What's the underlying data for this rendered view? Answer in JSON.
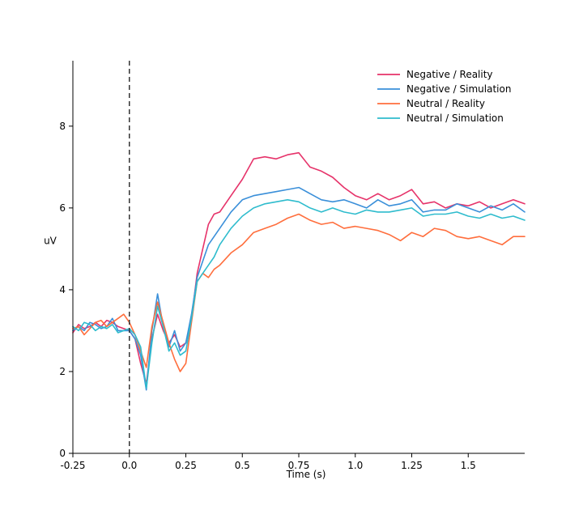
{
  "chart_data": {
    "type": "line",
    "title": "",
    "xlabel": "Time (s)",
    "ylabel": "uV",
    "xlim": [
      -0.25,
      1.75
    ],
    "ylim": [
      0,
      9.6
    ],
    "xticks": [
      -0.25,
      0.0,
      0.25,
      0.5,
      0.75,
      1.0,
      1.25,
      1.5
    ],
    "xtick_labels": [
      "-0.25",
      "0.0",
      "0.25",
      "0.5",
      "0.75",
      "1.0",
      "1.25",
      "1.5"
    ],
    "yticks": [
      0,
      2,
      4,
      6,
      8
    ],
    "ytick_labels": [
      "0",
      "2",
      "4",
      "6",
      "8"
    ],
    "grid": false,
    "legend_position": "top-right",
    "vline": {
      "x": 0.0,
      "style": "dashed"
    },
    "x": [
      -0.25,
      -0.225,
      -0.2,
      -0.175,
      -0.15,
      -0.125,
      -0.1,
      -0.075,
      -0.05,
      -0.025,
      0.0,
      0.025,
      0.05,
      0.075,
      0.1,
      0.125,
      0.15,
      0.175,
      0.2,
      0.225,
      0.25,
      0.275,
      0.3,
      0.325,
      0.35,
      0.375,
      0.4,
      0.45,
      0.5,
      0.55,
      0.6,
      0.65,
      0.7,
      0.75,
      0.8,
      0.85,
      0.9,
      0.95,
      1.0,
      1.05,
      1.1,
      1.15,
      1.2,
      1.25,
      1.3,
      1.35,
      1.4,
      1.45,
      1.5,
      1.55,
      1.6,
      1.65,
      1.7,
      1.75
    ],
    "series": [
      {
        "name": "Negative / Reality",
        "color": "#e6336a",
        "values": [
          2.95,
          3.15,
          3.05,
          3.1,
          3.2,
          3.1,
          3.25,
          3.2,
          3.1,
          3.05,
          3.0,
          2.8,
          2.2,
          1.7,
          2.8,
          3.4,
          3.0,
          2.7,
          2.9,
          2.6,
          2.7,
          3.3,
          4.4,
          5.0,
          5.6,
          5.85,
          5.9,
          6.3,
          6.7,
          7.2,
          7.25,
          7.2,
          7.3,
          7.35,
          7.0,
          6.9,
          6.75,
          6.5,
          6.3,
          6.2,
          6.35,
          6.2,
          6.3,
          6.45,
          6.1,
          6.15,
          6.0,
          6.1,
          6.05,
          6.15,
          6.0,
          6.1,
          6.2,
          6.1
        ]
      },
      {
        "name": "Negative / Simulation",
        "color": "#3a8fd9",
        "values": [
          3.0,
          3.1,
          3.0,
          3.2,
          3.15,
          3.05,
          3.1,
          3.3,
          3.0,
          3.0,
          3.0,
          2.8,
          2.4,
          1.55,
          3.0,
          3.9,
          3.1,
          2.6,
          3.0,
          2.5,
          2.7,
          3.4,
          4.3,
          4.7,
          5.1,
          5.3,
          5.5,
          5.9,
          6.2,
          6.3,
          6.35,
          6.4,
          6.45,
          6.5,
          6.35,
          6.2,
          6.15,
          6.2,
          6.1,
          6.0,
          6.2,
          6.05,
          6.1,
          6.2,
          5.9,
          5.95,
          5.95,
          6.1,
          6.0,
          5.9,
          6.05,
          5.95,
          6.1,
          5.9
        ]
      },
      {
        "name": "Neutral / Reality",
        "color": "#ff6e3d",
        "values": [
          3.05,
          3.1,
          2.9,
          3.05,
          3.2,
          3.25,
          3.1,
          3.2,
          3.3,
          3.4,
          3.2,
          2.9,
          2.5,
          2.1,
          3.1,
          3.7,
          3.2,
          2.7,
          2.3,
          2.0,
          2.2,
          3.2,
          4.2,
          4.4,
          4.3,
          4.5,
          4.6,
          4.9,
          5.1,
          5.4,
          5.5,
          5.6,
          5.75,
          5.85,
          5.7,
          5.6,
          5.65,
          5.5,
          5.55,
          5.5,
          5.45,
          5.35,
          5.2,
          5.4,
          5.3,
          5.5,
          5.45,
          5.3,
          5.25,
          5.3,
          5.2,
          5.1,
          5.3,
          5.3
        ]
      },
      {
        "name": "Neutral / Simulation",
        "color": "#2fbccd",
        "values": [
          3.1,
          3.0,
          3.2,
          3.15,
          3.0,
          3.1,
          3.05,
          3.15,
          2.95,
          3.0,
          3.05,
          2.9,
          2.6,
          1.6,
          2.7,
          3.6,
          3.1,
          2.5,
          2.7,
          2.4,
          2.5,
          3.3,
          4.2,
          4.4,
          4.6,
          4.8,
          5.1,
          5.5,
          5.8,
          6.0,
          6.1,
          6.15,
          6.2,
          6.15,
          6.0,
          5.9,
          6.0,
          5.9,
          5.85,
          5.95,
          5.9,
          5.9,
          5.95,
          6.0,
          5.8,
          5.85,
          5.85,
          5.9,
          5.8,
          5.75,
          5.85,
          5.75,
          5.8,
          5.7
        ]
      }
    ]
  }
}
